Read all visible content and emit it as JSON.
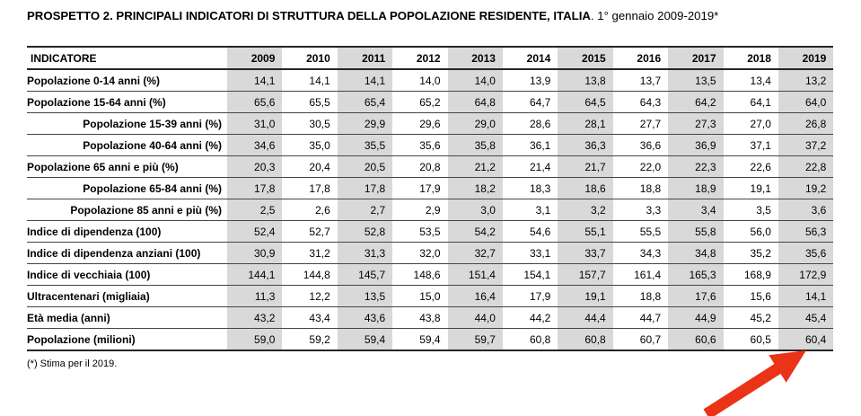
{
  "header": {
    "title_bold": "PROSPETTO 2. PRINCIPALI INDICATORI DI STRUTTURA DELLA POPOLAZIONE RESIDENTE, ITALIA",
    "title_rest": ". 1° gennaio 2009-2019*"
  },
  "table": {
    "indicator_header": "INDICATORE",
    "years": [
      "2009",
      "2010",
      "2011",
      "2012",
      "2013",
      "2014",
      "2015",
      "2016",
      "2017",
      "2018",
      "2019"
    ],
    "shaded_year_indices": [
      0,
      2,
      4,
      6,
      8,
      10
    ],
    "rows": [
      {
        "label": "Popolazione 0-14 anni (%)",
        "indent": false,
        "values": [
          "14,1",
          "14,1",
          "14,1",
          "14,0",
          "14,0",
          "13,9",
          "13,8",
          "13,7",
          "13,5",
          "13,4",
          "13,2"
        ]
      },
      {
        "label": "Popolazione 15-64 anni (%)",
        "indent": false,
        "values": [
          "65,6",
          "65,5",
          "65,4",
          "65,2",
          "64,8",
          "64,7",
          "64,5",
          "64,3",
          "64,2",
          "64,1",
          "64,0"
        ]
      },
      {
        "label": "Popolazione 15-39 anni (%)",
        "indent": true,
        "values": [
          "31,0",
          "30,5",
          "29,9",
          "29,6",
          "29,0",
          "28,6",
          "28,1",
          "27,7",
          "27,3",
          "27,0",
          "26,8"
        ]
      },
      {
        "label": "Popolazione 40-64 anni (%)",
        "indent": true,
        "values": [
          "34,6",
          "35,0",
          "35,5",
          "35,6",
          "35,8",
          "36,1",
          "36,3",
          "36,6",
          "36,9",
          "37,1",
          "37,2"
        ]
      },
      {
        "label": "Popolazione 65 anni e più (%)",
        "indent": false,
        "values": [
          "20,3",
          "20,4",
          "20,5",
          "20,8",
          "21,2",
          "21,4",
          "21,7",
          "22,0",
          "22,3",
          "22,6",
          "22,8"
        ]
      },
      {
        "label": "Popolazione 65-84 anni (%)",
        "indent": true,
        "values": [
          "17,8",
          "17,8",
          "17,8",
          "17,9",
          "18,2",
          "18,3",
          "18,6",
          "18,8",
          "18,9",
          "19,1",
          "19,2"
        ]
      },
      {
        "label": "Popolazione 85 anni e più (%)",
        "indent": true,
        "values": [
          "2,5",
          "2,6",
          "2,7",
          "2,9",
          "3,0",
          "3,1",
          "3,2",
          "3,3",
          "3,4",
          "3,5",
          "3,6"
        ]
      },
      {
        "label": "Indice di dipendenza (100)",
        "indent": false,
        "values": [
          "52,4",
          "52,7",
          "52,8",
          "53,5",
          "54,2",
          "54,6",
          "55,1",
          "55,5",
          "55,8",
          "56,0",
          "56,3"
        ]
      },
      {
        "label": "Indice di dipendenza anziani (100)",
        "indent": false,
        "values": [
          "30,9",
          "31,2",
          "31,3",
          "32,0",
          "32,7",
          "33,1",
          "33,7",
          "34,3",
          "34,8",
          "35,2",
          "35,6"
        ]
      },
      {
        "label": "Indice di vecchiaia (100)",
        "indent": false,
        "values": [
          "144,1",
          "144,8",
          "145,7",
          "148,6",
          "151,4",
          "154,1",
          "157,7",
          "161,4",
          "165,3",
          "168,9",
          "172,9"
        ]
      },
      {
        "label": "Ultracentenari (migliaia)",
        "indent": false,
        "values": [
          "11,3",
          "12,2",
          "13,5",
          "15,0",
          "16,4",
          "17,9",
          "19,1",
          "18,8",
          "17,6",
          "15,6",
          "14,1"
        ]
      },
      {
        "label": "Età media (anni)",
        "indent": false,
        "values": [
          "43,2",
          "43,4",
          "43,6",
          "43,8",
          "44,0",
          "44,2",
          "44,4",
          "44,7",
          "44,9",
          "45,2",
          "45,4"
        ]
      },
      {
        "label": "Popolazione (milioni)",
        "indent": false,
        "values": [
          "59,0",
          "59,2",
          "59,4",
          "59,4",
          "59,7",
          "60,8",
          "60,8",
          "60,7",
          "60,6",
          "60,5",
          "60,4"
        ]
      }
    ]
  },
  "footnote": "(*) Stima per il 2019.",
  "annotation": {
    "arrow_color": "#ea3317",
    "target_value": "60,4",
    "target_year": "2019"
  },
  "colors": {
    "column_shade": "#d9d9d9",
    "border_outer": "#262626",
    "border_inner": "#454545",
    "text": "#000000"
  }
}
